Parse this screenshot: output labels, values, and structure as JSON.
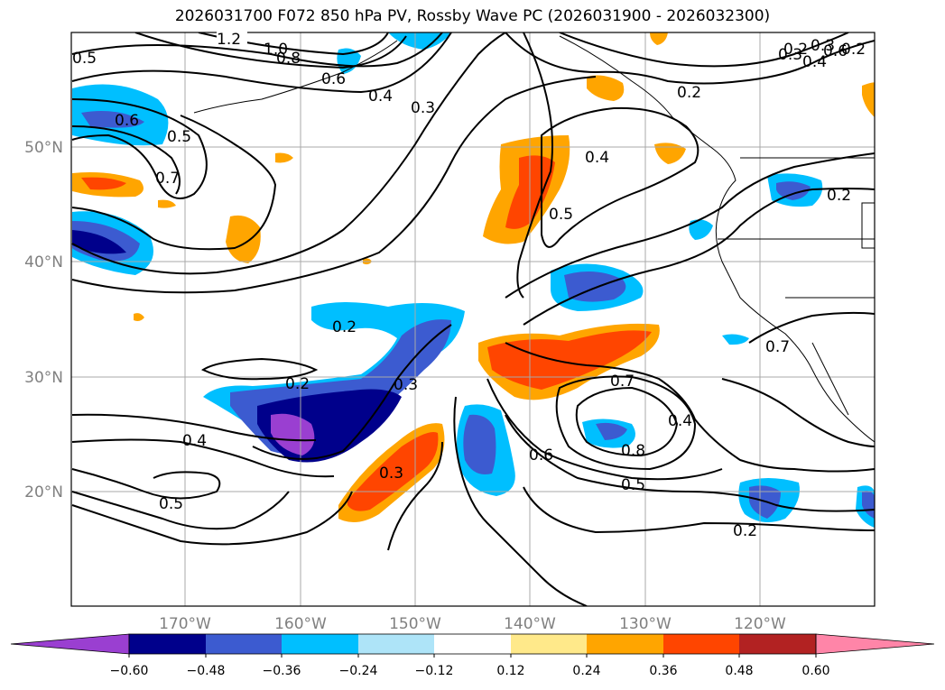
{
  "title": "2026031700 F072 850 hPa PV, Rossby Wave PC (2026031900 - 2026032300)",
  "map": {
    "lon_ticks": [
      "170°W",
      "160°W",
      "150°W",
      "140°W",
      "130°W",
      "120°W"
    ],
    "lat_ticks": [
      "50°N",
      "40°N",
      "30°N",
      "20°N"
    ],
    "lon_range": [
      -180,
      -110
    ],
    "lat_range": [
      10,
      60
    ],
    "grid": true
  },
  "colorbar": {
    "labels": [
      "−0.60",
      "−0.48",
      "−0.36",
      "−0.24",
      "−0.12",
      "0.12",
      "0.24",
      "0.36",
      "0.48",
      "0.60"
    ],
    "levels": [
      -0.6,
      -0.48,
      -0.36,
      -0.24,
      -0.12,
      0.12,
      0.24,
      0.36,
      0.48,
      0.6
    ],
    "colors": [
      "#9a3fd1",
      "#00008b",
      "#3c5bd0",
      "#00bfff",
      "#aee4f8",
      "#ffffff",
      "#ffe98a",
      "#ffa500",
      "#ff4500",
      "#b22222",
      "#ff85a8"
    ],
    "extend": "both"
  },
  "contour_labels": [
    "1.2",
    "1.0",
    "0.8",
    "0.6",
    "0.5",
    "0.4",
    "0.3",
    "0.2",
    "0.6",
    "0.5",
    "0.7",
    "0.3",
    "0.4",
    "0.5",
    "0.2",
    "0.2",
    "0.3",
    "0.2",
    "0.4",
    "0.3",
    "0.7",
    "0.4",
    "0.8",
    "0.6",
    "0.5",
    "0.2",
    "0.5",
    "0.7",
    "0.2",
    "0.3",
    "0.4",
    "0.6",
    "0.2"
  ]
}
